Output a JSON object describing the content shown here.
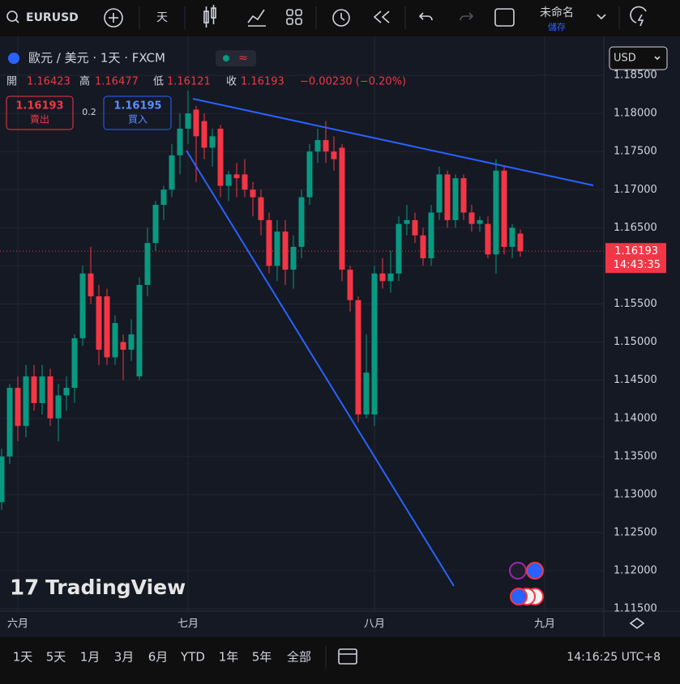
{
  "toolbar": {
    "symbol": "EURUSD",
    "interval": "天",
    "layout_name": "未命名",
    "save": "儲存"
  },
  "legend": {
    "title": "歐元 / 美元 · 1天 · FXCM",
    "open_label": "開",
    "high_label": "高",
    "low_label": "低",
    "close_label": "收",
    "change": "−0.00230 (−0.20%)",
    "sell_label": "賣出",
    "buy_label": "買入",
    "buy": 1.16195,
    "spread": 0.2
  },
  "currency": "USD",
  "countdown": "14:43:35",
  "watermark": "TradingView",
  "bottom": {
    "ranges": [
      "1天",
      "5天",
      "1月",
      "3月",
      "6月",
      "YTD",
      "1年",
      "5年",
      "全部"
    ],
    "clock": "14:16:25 UTC+8"
  },
  "chart_data": {
    "type": "candlestick",
    "up_color": "#089981",
    "down_color": "#f23645",
    "open": [
      1.129,
      1.135,
      1.144,
      1.139,
      1.1455,
      1.142,
      1.1455,
      1.14,
      1.143,
      1.144,
      1.1505,
      1.159,
      1.156,
      1.156,
      1.148,
      1.15,
      1.149,
      1.1455,
      1.1575,
      1.163,
      1.168,
      1.17,
      1.1745,
      1.178,
      1.1805,
      1.179,
      1.1755,
      1.178,
      1.1705,
      1.172,
      1.172,
      1.17,
      1.169,
      1.166,
      1.16,
      1.1645,
      1.1595,
      1.1625,
      1.169,
      1.175,
      1.1765,
      1.175,
      1.1755,
      1.1595,
      1.1555,
      1.1405,
      1.1405,
      1.159,
      1.158,
      1.159,
      1.1655,
      1.166,
      1.164,
      1.161,
      1.167,
      1.172,
      1.166,
      1.1715,
      1.167,
      1.1655,
      1.1655,
      1.1615,
      1.1725,
      1.1625,
      1.16423
    ],
    "high": [
      1.136,
      1.1445,
      1.1455,
      1.147,
      1.147,
      1.147,
      1.1465,
      1.1445,
      1.1455,
      1.151,
      1.16,
      1.1625,
      1.1575,
      1.157,
      1.1535,
      1.151,
      1.153,
      1.1585,
      1.165,
      1.1685,
      1.1705,
      1.176,
      1.18,
      1.183,
      1.181,
      1.18,
      1.178,
      1.1785,
      1.1725,
      1.1735,
      1.174,
      1.171,
      1.17,
      1.167,
      1.166,
      1.166,
      1.164,
      1.17,
      1.176,
      1.178,
      1.179,
      1.177,
      1.176,
      1.16,
      1.156,
      1.151,
      1.16,
      1.161,
      1.162,
      1.1665,
      1.168,
      1.167,
      1.165,
      1.168,
      1.173,
      1.1725,
      1.172,
      1.172,
      1.168,
      1.1665,
      1.1665,
      1.174,
      1.173,
      1.1655,
      1.16477
    ],
    "low": [
      1.128,
      1.134,
      1.137,
      1.1375,
      1.141,
      1.1405,
      1.139,
      1.137,
      1.141,
      1.142,
      1.1495,
      1.155,
      1.147,
      1.147,
      1.147,
      1.145,
      1.1475,
      1.145,
      1.156,
      1.162,
      1.166,
      1.169,
      1.172,
      1.176,
      1.171,
      1.174,
      1.173,
      1.169,
      1.1685,
      1.169,
      1.169,
      1.1665,
      1.164,
      1.159,
      1.158,
      1.1575,
      1.157,
      1.161,
      1.168,
      1.1735,
      1.1735,
      1.1725,
      1.158,
      1.154,
      1.1395,
      1.14,
      1.139,
      1.157,
      1.1565,
      1.158,
      1.164,
      1.163,
      1.16,
      1.16,
      1.166,
      1.165,
      1.165,
      1.166,
      1.1645,
      1.1645,
      1.161,
      1.159,
      1.1615,
      1.161,
      1.16121
    ],
    "close": [
      1.135,
      1.144,
      1.139,
      1.1455,
      1.142,
      1.1455,
      1.14,
      1.143,
      1.144,
      1.1505,
      1.159,
      1.156,
      1.149,
      1.148,
      1.1525,
      1.149,
      1.151,
      1.1575,
      1.163,
      1.168,
      1.17,
      1.1745,
      1.178,
      1.18,
      1.177,
      1.1755,
      1.177,
      1.1705,
      1.172,
      1.1715,
      1.17,
      1.169,
      1.166,
      1.16,
      1.1645,
      1.1595,
      1.1625,
      1.169,
      1.175,
      1.1765,
      1.175,
      1.174,
      1.1595,
      1.1555,
      1.1405,
      1.146,
      1.159,
      1.158,
      1.159,
      1.1655,
      1.166,
      1.164,
      1.161,
      1.167,
      1.172,
      1.166,
      1.1715,
      1.167,
      1.1655,
      1.166,
      1.1615,
      1.1725,
      1.1625,
      1.165,
      1.16193
    ],
    "xlim": [
      -0.2,
      74.3
    ],
    "xticks": [
      {
        "value": 2,
        "label": "六月"
      },
      {
        "value": 23,
        "label": "七月"
      },
      {
        "value": 46,
        "label": "八月"
      },
      {
        "value": 67,
        "label": "九月"
      }
    ],
    "ylim": [
      1.1147,
      1.1901
    ],
    "yticks": [
      {
        "value": 1.185,
        "label": "1.18500"
      },
      {
        "value": 1.18,
        "label": "1.18000"
      },
      {
        "value": 1.175,
        "label": "1.17500"
      },
      {
        "value": 1.17,
        "label": "1.17000"
      },
      {
        "value": 1.165,
        "label": "1.16500"
      },
      {
        "value": 1.16,
        "label": "1.16000"
      },
      {
        "value": 1.155,
        "label": "1.15500"
      },
      {
        "value": 1.15,
        "label": "1.15000"
      },
      {
        "value": 1.145,
        "label": "1.14500"
      },
      {
        "value": 1.14,
        "label": "1.14000"
      },
      {
        "value": 1.135,
        "label": "1.13500"
      },
      {
        "value": 1.13,
        "label": "1.13000"
      },
      {
        "value": 1.125,
        "label": "1.12500"
      },
      {
        "value": 1.12,
        "label": "1.12000"
      },
      {
        "value": 1.115,
        "label": "1.11500"
      }
    ],
    "grid": true
  }
}
